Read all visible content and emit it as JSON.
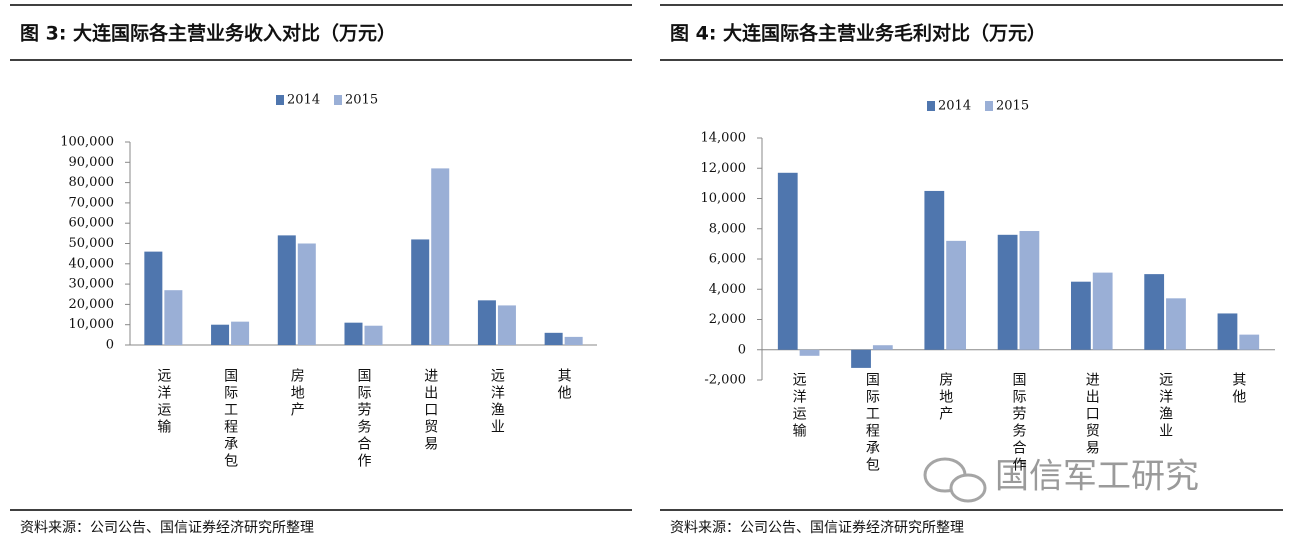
{
  "chart_data": [
    {
      "type": "bar",
      "title": "图 3:  大连国际各主营业务收入对比（万元）",
      "categories": [
        "远洋运输",
        "国际工程承包",
        "房地产",
        "国际劳务合作",
        "进出口贸易",
        "远洋渔业",
        "其他"
      ],
      "series": [
        {
          "name": "2014",
          "color": "#4f76ae",
          "values": [
            46000,
            10000,
            54000,
            11000,
            52000,
            22000,
            6000
          ]
        },
        {
          "name": "2015",
          "color": "#9aafd6",
          "values": [
            27000,
            11500,
            50000,
            9500,
            87000,
            19500,
            4000
          ]
        }
      ],
      "ylim": [
        0,
        100000
      ],
      "yticks": [
        0,
        {
          "value": 10000,
          "label": "10,000"
        },
        {
          "value": 20000,
          "label": "20,000"
        },
        {
          "value": 30000,
          "label": "30,000"
        },
        {
          "value": 40000,
          "label": "40,000"
        },
        {
          "value": 50000,
          "label": "50,000"
        },
        {
          "value": 60000,
          "label": "60,000"
        },
        {
          "value": 70000,
          "label": "70,000"
        },
        {
          "value": 80000,
          "label": "80,000"
        },
        {
          "value": 90000,
          "label": "90,000"
        },
        {
          "value": 100000,
          "label": "100,000"
        }
      ],
      "legend": "top",
      "source": "资料来源：公司公告、国信证券经济研究所整理"
    },
    {
      "type": "bar",
      "title": "图 4:  大连国际各主营业务毛利对比（万元）",
      "categories": [
        "远洋运输",
        "国际工程承包",
        "房地产",
        "国际劳务合作",
        "进出口贸易",
        "远洋渔业",
        "其他"
      ],
      "series": [
        {
          "name": "2014",
          "color": "#4f76ae",
          "values": [
            11700,
            -1200,
            10500,
            7600,
            4500,
            5000,
            2400
          ]
        },
        {
          "name": "2015",
          "color": "#9aafd6",
          "values": [
            -400,
            300,
            7200,
            7850,
            5100,
            3400,
            1000
          ]
        }
      ],
      "ylim": [
        -2000,
        14000
      ],
      "yticks": [
        {
          "value": -2000,
          "label": "-2,000"
        },
        0,
        {
          "value": 2000,
          "label": "2,000"
        },
        {
          "value": 4000,
          "label": "4,000"
        },
        {
          "value": 6000,
          "label": "6,000"
        },
        {
          "value": 8000,
          "label": "8,000"
        },
        {
          "value": 10000,
          "label": "10,000"
        },
        {
          "value": 12000,
          "label": "12,000"
        },
        {
          "value": 14000,
          "label": "14,000"
        }
      ],
      "legend": "top",
      "source": "资料来源：公司公告、国信证券经济研究所整理"
    }
  ],
  "watermark": "国信军工研究"
}
